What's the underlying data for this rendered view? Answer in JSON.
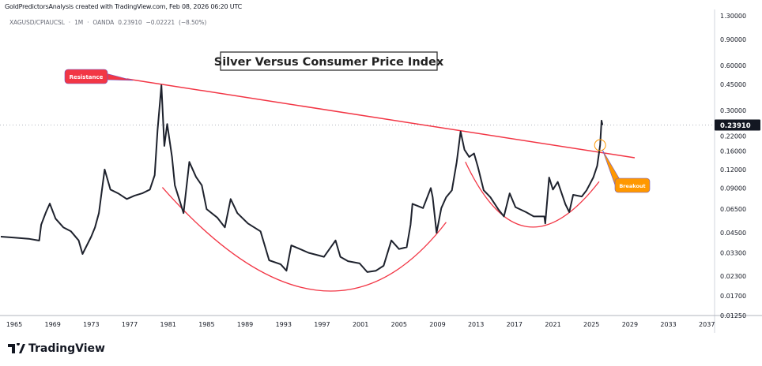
{
  "header": {
    "caption": "GoldPredictorsAnalysis created with TradingView.com, Feb 08, 2026 06:20 UTC"
  },
  "symbol_bar": {
    "symbol": "XAGUSD/CPIAUCSL",
    "interval": "1M",
    "source": "OANDA",
    "price": "0.23910",
    "change": "−0.02221",
    "change_pct": "(−8.50%)",
    "sep": "·"
  },
  "logo": {
    "text": "TradingView"
  },
  "colors": {
    "line": "#1e222d",
    "resistance": "#f23645",
    "breakout": "#ff9800",
    "price_tag": "#131722"
  },
  "chart_data": {
    "type": "line",
    "title": "Silver Versus Consumer Price Index",
    "xlabel": "",
    "ylabel": "",
    "y_scale": "log",
    "ylim": [
      0.0125,
      1.3
    ],
    "xlim": [
      1963.6,
      2038.5
    ],
    "x_ticks": [
      "1965",
      "1969",
      "1973",
      "1977",
      "1981",
      "1985",
      "1989",
      "1993",
      "1997",
      "2001",
      "2005",
      "2009",
      "2013",
      "2017",
      "2021",
      "2025",
      "2029",
      "2033",
      "2037"
    ],
    "y_ticks": [
      "1.30000",
      "0.90000",
      "0.60000",
      "0.45000",
      "0.30000",
      "0.22000",
      "0.16000",
      "0.12000",
      "0.09000",
      "0.06500",
      "0.04500",
      "0.03300",
      "0.02300",
      "0.01700",
      "0.01250"
    ],
    "last_value_label": "0.23910",
    "series": [
      {
        "name": "XAGUSD/CPIAUCSL",
        "points": [
          [
            1963.6,
            0.0424
          ],
          [
            1965,
            0.0418
          ],
          [
            1966.5,
            0.041
          ],
          [
            1967.6,
            0.0399
          ],
          [
            1967.8,
            0.051
          ],
          [
            1968.3,
            0.062
          ],
          [
            1968.7,
            0.0708
          ],
          [
            1969.3,
            0.056
          ],
          [
            1970.1,
            0.049
          ],
          [
            1970.9,
            0.046
          ],
          [
            1971.7,
            0.04
          ],
          [
            1972.1,
            0.0324
          ],
          [
            1973,
            0.0424
          ],
          [
            1973.4,
            0.049
          ],
          [
            1973.8,
            0.061
          ],
          [
            1974.4,
            0.12
          ],
          [
            1975,
            0.088
          ],
          [
            1975.8,
            0.083
          ],
          [
            1976.7,
            0.076
          ],
          [
            1977.5,
            0.08
          ],
          [
            1978.3,
            0.083
          ],
          [
            1979.1,
            0.088
          ],
          [
            1979.6,
            0.11
          ],
          [
            1979.9,
            0.22
          ],
          [
            1980.3,
            0.443
          ],
          [
            1980.6,
            0.173
          ],
          [
            1980.9,
            0.243
          ],
          [
            1981.4,
            0.146
          ],
          [
            1981.7,
            0.094
          ],
          [
            1982.6,
            0.061
          ],
          [
            1983.2,
            0.135
          ],
          [
            1983.9,
            0.107
          ],
          [
            1984.5,
            0.094
          ],
          [
            1985,
            0.065
          ],
          [
            1986.1,
            0.057
          ],
          [
            1986.9,
            0.049
          ],
          [
            1987.5,
            0.076
          ],
          [
            1988.2,
            0.061
          ],
          [
            1989.3,
            0.052
          ],
          [
            1990.6,
            0.046
          ],
          [
            1991.5,
            0.0294
          ],
          [
            1992.7,
            0.0276
          ],
          [
            1993.3,
            0.025
          ],
          [
            1993.8,
            0.037
          ],
          [
            1994.7,
            0.035
          ],
          [
            1995.6,
            0.033
          ],
          [
            1996.4,
            0.032
          ],
          [
            1997.2,
            0.031
          ],
          [
            1998.4,
            0.04
          ],
          [
            1998.9,
            0.031
          ],
          [
            1999.7,
            0.029
          ],
          [
            2000.9,
            0.028
          ],
          [
            2001.7,
            0.0245
          ],
          [
            2002.6,
            0.025
          ],
          [
            2003.4,
            0.027
          ],
          [
            2004.2,
            0.04
          ],
          [
            2005,
            0.035
          ],
          [
            2005.8,
            0.036
          ],
          [
            2006.2,
            0.051
          ],
          [
            2006.4,
            0.0705
          ],
          [
            2007.5,
            0.066
          ],
          [
            2008.3,
            0.09
          ],
          [
            2008.5,
            0.078
          ],
          [
            2008.9,
            0.045
          ],
          [
            2009.4,
            0.066
          ],
          [
            2009.9,
            0.078
          ],
          [
            2010.5,
            0.087
          ],
          [
            2011,
            0.135
          ],
          [
            2011.4,
            0.216
          ],
          [
            2011.8,
            0.163
          ],
          [
            2012.3,
            0.146
          ],
          [
            2012.8,
            0.154
          ],
          [
            2013.2,
            0.125
          ],
          [
            2013.8,
            0.087
          ],
          [
            2014.5,
            0.078
          ],
          [
            2015.3,
            0.065
          ],
          [
            2015.9,
            0.058
          ],
          [
            2016.5,
            0.083
          ],
          [
            2017.1,
            0.067
          ],
          [
            2018.2,
            0.062
          ],
          [
            2019,
            0.058
          ],
          [
            2020.1,
            0.058
          ],
          [
            2020.2,
            0.052
          ],
          [
            2020.6,
            0.106
          ],
          [
            2021,
            0.088
          ],
          [
            2021.5,
            0.099
          ],
          [
            2022.3,
            0.07
          ],
          [
            2022.7,
            0.062
          ],
          [
            2023.1,
            0.081
          ],
          [
            2024,
            0.079
          ],
          [
            2024.5,
            0.087
          ],
          [
            2025.2,
            0.106
          ],
          [
            2025.6,
            0.127
          ],
          [
            2025.9,
            0.175
          ],
          [
            2026.05,
            0.256
          ],
          [
            2026.15,
            0.2391
          ]
        ]
      }
    ],
    "annotations": {
      "resistance": {
        "label": "Resistance",
        "from": [
          1976.7,
          0.489
        ],
        "to": [
          2029.5,
          0.144
        ]
      },
      "breakout": {
        "label": "Breakout",
        "at": [
          2025.9,
          0.175
        ]
      },
      "arc1": {
        "start": [
          1980.4,
          0.091
        ],
        "bottom": [
          1996.4,
          0.0185
        ],
        "end": [
          2009.9,
          0.053
        ]
      },
      "arc2": {
        "start": [
          2011.9,
          0.135
        ],
        "bottom": [
          2018.3,
          0.0495
        ],
        "end": [
          2025.8,
          0.0995
        ]
      }
    }
  }
}
